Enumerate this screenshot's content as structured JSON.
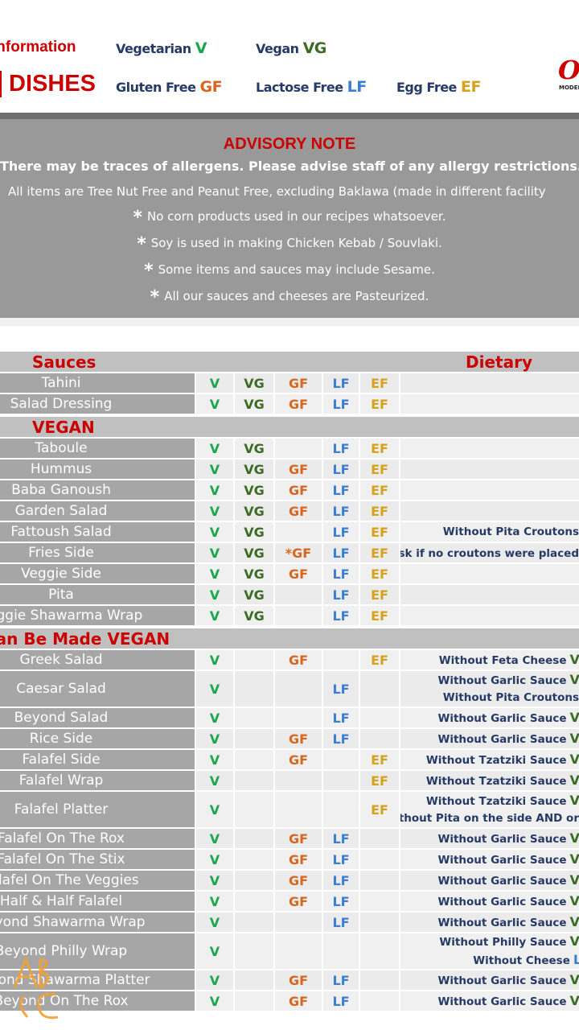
{
  "header": {
    "title_line1": "Information",
    "title_line2": "DISHES",
    "legend": [
      {
        "label": "Vegetarian",
        "code": "V",
        "color": "#1aa64a"
      },
      {
        "label": "Vegan",
        "code": "VG",
        "color": "#3c6b23"
      },
      {
        "label": "Gluten Free",
        "code": "GF",
        "color": "#d8661f"
      },
      {
        "label": "Lactose Free",
        "code": "LF",
        "color": "#3c7fd0"
      },
      {
        "label": "Egg Free",
        "code": "EF",
        "color": "#d6a11c"
      }
    ],
    "logo_text": "Os",
    "logo_sub": "MODERN"
  },
  "advisory": {
    "title": "ADVISORY NOTE",
    "line1": "There may be traces of allergens. Please advise staff of any allergy restrictions.",
    "line2": "All items are Tree Nut Free and Peanut Free, excluding Baklawa (made in different facility",
    "bullets": [
      "No corn products used in our recipes whatsoever.",
      "Soy is used in making Chicken Kebab / Souvlaki.",
      "Some items and sauces may include Sesame.",
      "All our sauces and cheeses are Pasteurized."
    ]
  },
  "colors": {
    "V": "#1aa64a",
    "VG": "#3c6b23",
    "GF": "#d8661f",
    "*GF": "#d8661f",
    "LF": "#3c7fd0",
    "EF": "#d6a11c",
    "accent": "#cc0000"
  },
  "dietary_header": "Dietary Option",
  "sections": [
    {
      "title": "Sauces",
      "rows": [
        {
          "name": "Tahini",
          "tags": [
            "V",
            "VG",
            "GF",
            "LF",
            "EF"
          ],
          "notes": []
        },
        {
          "name": "Salad Dressing",
          "tags": [
            "V",
            "VG",
            "GF",
            "LF",
            "EF"
          ],
          "notes": []
        }
      ]
    },
    {
      "title": "VEGAN",
      "rows": [
        {
          "name": "Taboule",
          "tags": [
            "V",
            "VG",
            "",
            "LF",
            "EF"
          ],
          "notes": []
        },
        {
          "name": "Hummus",
          "tags": [
            "V",
            "VG",
            "GF",
            "LF",
            "EF"
          ],
          "notes": []
        },
        {
          "name": "Baba Ganoush",
          "tags": [
            "V",
            "VG",
            "GF",
            "LF",
            "EF"
          ],
          "notes": []
        },
        {
          "name": "Garden Salad",
          "tags": [
            "V",
            "VG",
            "GF",
            "LF",
            "EF"
          ],
          "notes": []
        },
        {
          "name": "Fattoush Salad",
          "tags": [
            "V",
            "VG",
            "",
            "LF",
            "EF"
          ],
          "notes": [
            {
              "text": "Without Pita Croutons",
              "badge": ""
            }
          ]
        },
        {
          "name": "Fries Side",
          "tags": [
            "V",
            "VG",
            "*GF",
            "LF",
            "EF"
          ],
          "notes": [
            {
              "prefix": "*",
              "text": "Ask if no croutons were placed",
              "badge": ""
            }
          ]
        },
        {
          "name": "Veggie Side",
          "tags": [
            "V",
            "VG",
            "GF",
            "LF",
            "EF"
          ],
          "notes": []
        },
        {
          "name": "Pita",
          "tags": [
            "V",
            "VG",
            "",
            "LF",
            "EF"
          ],
          "notes": []
        },
        {
          "name": "Veggie Shawarma Wrap",
          "tags": [
            "V",
            "VG",
            "",
            "LF",
            "EF"
          ],
          "notes": []
        }
      ]
    },
    {
      "title": "Can Be Made VEGAN",
      "rows": [
        {
          "name": "Greek Salad",
          "tags": [
            "V",
            "",
            "GF",
            "",
            "EF"
          ],
          "notes": [
            {
              "text": "Without Feta Cheese",
              "badge": "VG"
            }
          ]
        },
        {
          "name": "Caesar Salad",
          "tags": [
            "V",
            "",
            "",
            "LF",
            ""
          ],
          "notes": [
            {
              "text": "Without Garlic Sauce",
              "badge": "VG"
            },
            {
              "text": "Without Pita Croutons",
              "badge": ""
            }
          ]
        },
        {
          "name": "Beyond Salad",
          "tags": [
            "V",
            "",
            "",
            "LF",
            ""
          ],
          "notes": [
            {
              "text": "Without Garlic Sauce",
              "badge": "VG"
            }
          ]
        },
        {
          "name": "Rice Side",
          "tags": [
            "V",
            "",
            "GF",
            "LF",
            ""
          ],
          "notes": [
            {
              "text": "Without Garlic Sauce",
              "badge": "VG"
            }
          ]
        },
        {
          "name": "Falafel Side",
          "tags": [
            "V",
            "",
            "GF",
            "",
            "EF"
          ],
          "notes": [
            {
              "text": "Without Tzatziki Sauce",
              "badge": "VG"
            }
          ]
        },
        {
          "name": "Falafel Wrap",
          "tags": [
            "V",
            "",
            "",
            "",
            "EF"
          ],
          "notes": [
            {
              "text": "Without Tzatziki Sauce",
              "badge": "VG"
            }
          ]
        },
        {
          "name": "Falafel Platter",
          "tags": [
            "V",
            "",
            "",
            "",
            "EF"
          ],
          "notes": [
            {
              "text": "Without Tzatziki Sauce",
              "badge": "VG"
            },
            {
              "text": "Without Pita on the side AND or",
              "badge": ""
            }
          ]
        },
        {
          "name": "Falafel On The Rox",
          "tags": [
            "V",
            "",
            "GF",
            "LF",
            ""
          ],
          "notes": [
            {
              "text": "Without Garlic Sauce",
              "badge": "VG"
            }
          ]
        },
        {
          "name": "Falafel On The Stix",
          "tags": [
            "V",
            "",
            "GF",
            "LF",
            ""
          ],
          "notes": [
            {
              "text": "Without Garlic Sauce",
              "badge": "VG"
            }
          ]
        },
        {
          "name": "Falafel On The Veggies",
          "tags": [
            "V",
            "",
            "GF",
            "LF",
            ""
          ],
          "notes": [
            {
              "text": "Without Garlic Sauce",
              "badge": "VG"
            }
          ]
        },
        {
          "name": "Half & Half Falafel",
          "tags": [
            "V",
            "",
            "GF",
            "LF",
            ""
          ],
          "notes": [
            {
              "text": "Without Garlic Sauce",
              "badge": "VG"
            }
          ]
        },
        {
          "name": "Beyond Shawarma Wrap",
          "tags": [
            "V",
            "",
            "",
            "LF",
            ""
          ],
          "notes": [
            {
              "text": "Without Garlic Sauce",
              "badge": "VG"
            }
          ]
        },
        {
          "name": "Beyond Philly Wrap",
          "tags": [
            "V",
            "",
            "",
            "",
            ""
          ],
          "notes": [
            {
              "text": "Without Philly Sauce",
              "badge": "VG"
            },
            {
              "text": "Without Cheese",
              "badge": "LF"
            }
          ]
        },
        {
          "name": "Beyond Shawarma Platter",
          "tags": [
            "V",
            "",
            "GF",
            "LF",
            ""
          ],
          "notes": [
            {
              "text": "Without Garlic Sauce",
              "badge": "VG"
            }
          ]
        },
        {
          "name": "Beyond On The Rox",
          "tags": [
            "V",
            "",
            "GF",
            "LF",
            ""
          ],
          "notes": [
            {
              "text": "Without Garlic Sauce",
              "badge": "VG"
            }
          ]
        }
      ]
    }
  ]
}
